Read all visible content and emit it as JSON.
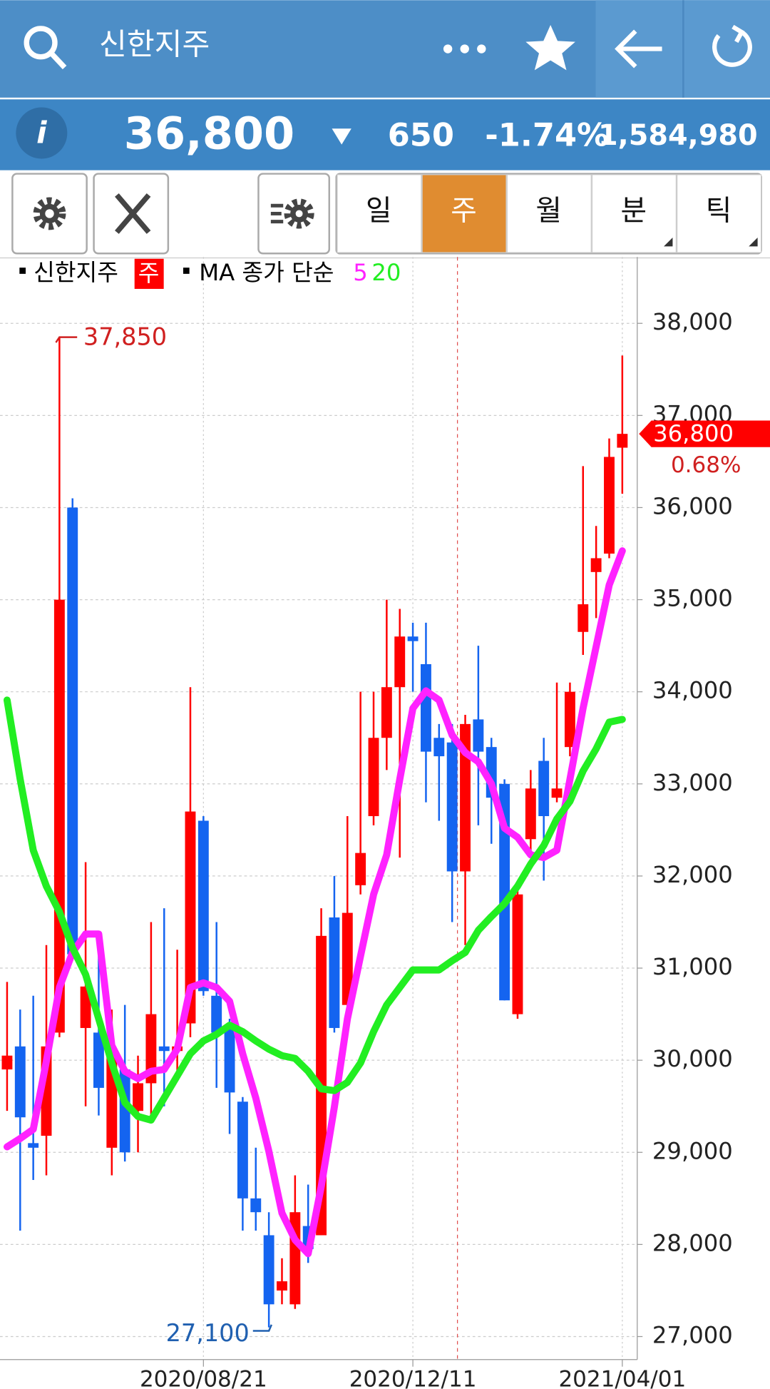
{
  "header": {
    "title": "신한지주"
  },
  "quote": {
    "price": "36,800",
    "change": "650",
    "change_pct": "-1.74%",
    "volume": "1,584,980"
  },
  "toolbar": {
    "tabs": [
      "일",
      "주",
      "월",
      "분",
      "틱"
    ]
  },
  "chart_data": {
    "type": "candlestick",
    "name": "신한지주",
    "period": "주",
    "ma_label": "MA 종가 단순",
    "up_color": "#ff0000",
    "down_color": "#1464f0",
    "categories": [
      null,
      null,
      null,
      null,
      null,
      null,
      null,
      null,
      null,
      null,
      null,
      null,
      null,
      null,
      null,
      "2020/08/21",
      null,
      null,
      null,
      null,
      null,
      null,
      null,
      null,
      null,
      null,
      null,
      null,
      null,
      null,
      null,
      "2020/12/11",
      null,
      null,
      null,
      null,
      null,
      null,
      null,
      null,
      null,
      null,
      null,
      null,
      null,
      null,
      null,
      "2021/04/01"
    ],
    "open": [
      29900,
      30150,
      29100,
      29180,
      30300,
      36000,
      30350,
      30300,
      29050,
      29900,
      29450,
      29750,
      30150,
      30100,
      30400,
      32600,
      30700,
      30350,
      29550,
      28500,
      28100,
      27500,
      27350,
      28200,
      28100,
      31550,
      30600,
      31900,
      32650,
      33500,
      34050,
      34600,
      34300,
      33500,
      33450,
      32050,
      33700,
      33400,
      33000,
      30500,
      32400,
      33250,
      32850,
      33400,
      34650,
      35300,
      35500,
      36650
    ],
    "high": [
      30850,
      30550,
      30700,
      31250,
      37850,
      36100,
      32150,
      31300,
      30550,
      30600,
      30050,
      31500,
      31650,
      31200,
      34050,
      32650,
      31500,
      30450,
      29600,
      29050,
      28350,
      27850,
      28750,
      28650,
      31650,
      32000,
      32650,
      34000,
      34000,
      35000,
      34900,
      34750,
      34750,
      33650,
      33650,
      33750,
      34500,
      33500,
      33050,
      31850,
      33150,
      33500,
      34100,
      34100,
      36450,
      35800,
      36750,
      37650
    ],
    "low": [
      29450,
      28150,
      28700,
      28750,
      30250,
      31100,
      29500,
      29400,
      28750,
      28900,
      29000,
      29400,
      29500,
      29800,
      30250,
      30700,
      29700,
      29200,
      28150,
      28150,
      27100,
      27350,
      27300,
      27800,
      28100,
      30300,
      30500,
      31800,
      32550,
      33150,
      32200,
      34000,
      32800,
      32600,
      31500,
      31250,
      32550,
      32350,
      30650,
      30450,
      32200,
      31950,
      32800,
      33300,
      34400,
      34800,
      35450,
      36150
    ],
    "close": [
      30050,
      29380,
      29050,
      30150,
      35000,
      31150,
      30800,
      29700,
      30050,
      29000,
      29750,
      30500,
      30100,
      30150,
      32700,
      30750,
      30300,
      29650,
      28500,
      28350,
      27350,
      27600,
      28350,
      27950,
      31350,
      30350,
      31600,
      32250,
      33500,
      34050,
      34600,
      34550,
      33350,
      33300,
      32050,
      33650,
      33350,
      32850,
      30650,
      31800,
      32950,
      32650,
      32950,
      34000,
      34950,
      35450,
      36550,
      36800
    ],
    "series": [
      {
        "name": "5",
        "color": "#ff22ff",
        "values": [
          29060,
          29150,
          29250,
          29990,
          30790,
          31170,
          31370,
          31370,
          30160,
          29880,
          29800,
          29880,
          29900,
          30120,
          30790,
          30840,
          30790,
          30640,
          30070,
          29590,
          29010,
          28340,
          28050,
          27900,
          28630,
          29490,
          30450,
          31130,
          31800,
          32230,
          33050,
          33820,
          34010,
          33910,
          33530,
          33340,
          33240,
          33000,
          32520,
          32420,
          32230,
          32200,
          32280,
          33050,
          33820,
          34490,
          35160,
          35530
        ]
      },
      {
        "name": "20",
        "color": "#22ee22",
        "values": [
          33910,
          33050,
          32280,
          31890,
          31610,
          31220,
          30930,
          30450,
          29970,
          29540,
          29390,
          29350,
          29590,
          29830,
          30070,
          30210,
          30280,
          30380,
          30310,
          30210,
          30120,
          30050,
          30020,
          29880,
          29690,
          29670,
          29760,
          29970,
          30310,
          30600,
          30790,
          30980,
          30980,
          30980,
          31080,
          31170,
          31410,
          31560,
          31700,
          31890,
          32130,
          32330,
          32620,
          32810,
          33140,
          33380,
          33670,
          33700
        ]
      }
    ],
    "ylim": [
      26750,
      38720
    ],
    "yticks": [
      {
        "value": 27000,
        "label": "27,000"
      },
      {
        "value": 28000,
        "label": "28,000"
      },
      {
        "value": 29000,
        "label": "29,000"
      },
      {
        "value": 30000,
        "label": "30,000"
      },
      {
        "value": 31000,
        "label": "31,000"
      },
      {
        "value": 32000,
        "label": "32,000"
      },
      {
        "value": 33000,
        "label": "33,000"
      },
      {
        "value": 34000,
        "label": "34,000"
      },
      {
        "value": 35000,
        "label": "35,000"
      },
      {
        "value": 36000,
        "label": "36,000"
      },
      {
        "value": 37000,
        "label": "37,000"
      },
      {
        "value": 38000,
        "label": "38,000"
      }
    ],
    "grid": true,
    "max_label": {
      "value": 37850,
      "label": "37,850"
    },
    "min_label": {
      "value": 27100,
      "label": "27,100"
    },
    "last_label": {
      "value": 36800,
      "label": "36,800"
    },
    "last_change": "0.68%"
  }
}
